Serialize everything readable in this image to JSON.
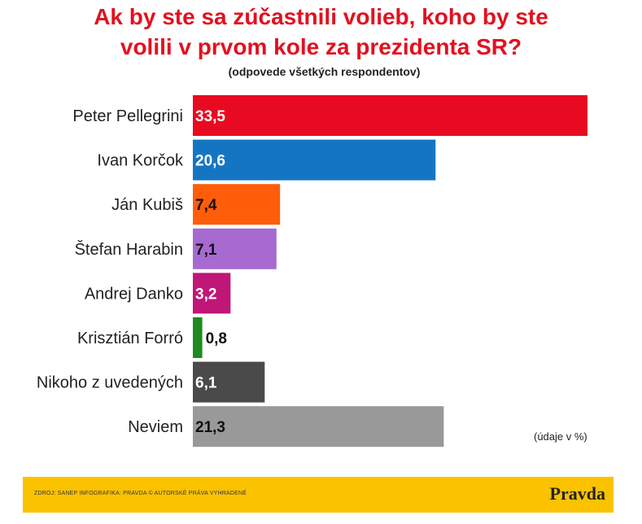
{
  "header": {
    "title_line1": "Ak by ste sa zúčastnili volieb, koho by ste",
    "title_line2": "volili v prvom kole za prezidenta SR?",
    "subtitle": "(odpovede všetkých respondentov)"
  },
  "unit_note": "(údaje v %)",
  "footer": {
    "source": "ZDROJ: SANEP INFOGRAFIKA: PRAVDA © AUTORSKÉ PRÁVA VYHRADENÉ",
    "logo": "Pravda"
  },
  "colors": {
    "title": "#e3101f",
    "footer_bg": "#fbc200"
  },
  "chart_data": {
    "type": "bar",
    "orientation": "horizontal",
    "title": "Ak by ste sa zúčastnili volieb, koho by ste volili v prvom kole za prezidenta SR?",
    "subtitle": "(odpovede všetkých respondentov)",
    "xlabel": "",
    "ylabel": "",
    "unit": "(údaje v %)",
    "grid": false,
    "categories": [
      "Peter Pellegrini",
      "Ivan Korčok",
      "Ján Kubiš",
      "Štefan Harabin",
      "Andrej Danko",
      "Krisztián Forró",
      "Nikoho z uvedených",
      "Neviem"
    ],
    "values": [
      33.5,
      20.6,
      7.4,
      7.1,
      3.2,
      0.8,
      6.1,
      21.3
    ],
    "value_labels": [
      "33,5",
      "20,6",
      "7,4",
      "7,1",
      "3,2",
      "0,8",
      "6,1",
      "21,3"
    ],
    "bar_colors": [
      "#e80a20",
      "#1476c3",
      "#ff5d0a",
      "#a66ad1",
      "#c01677",
      "#1e8a1e",
      "#4a4a4a",
      "#999999"
    ],
    "label_colors": [
      "#ffffff",
      "#ffffff",
      "#111111",
      "#111111",
      "#ffffff",
      "#111111",
      "#ffffff",
      "#111111"
    ]
  }
}
